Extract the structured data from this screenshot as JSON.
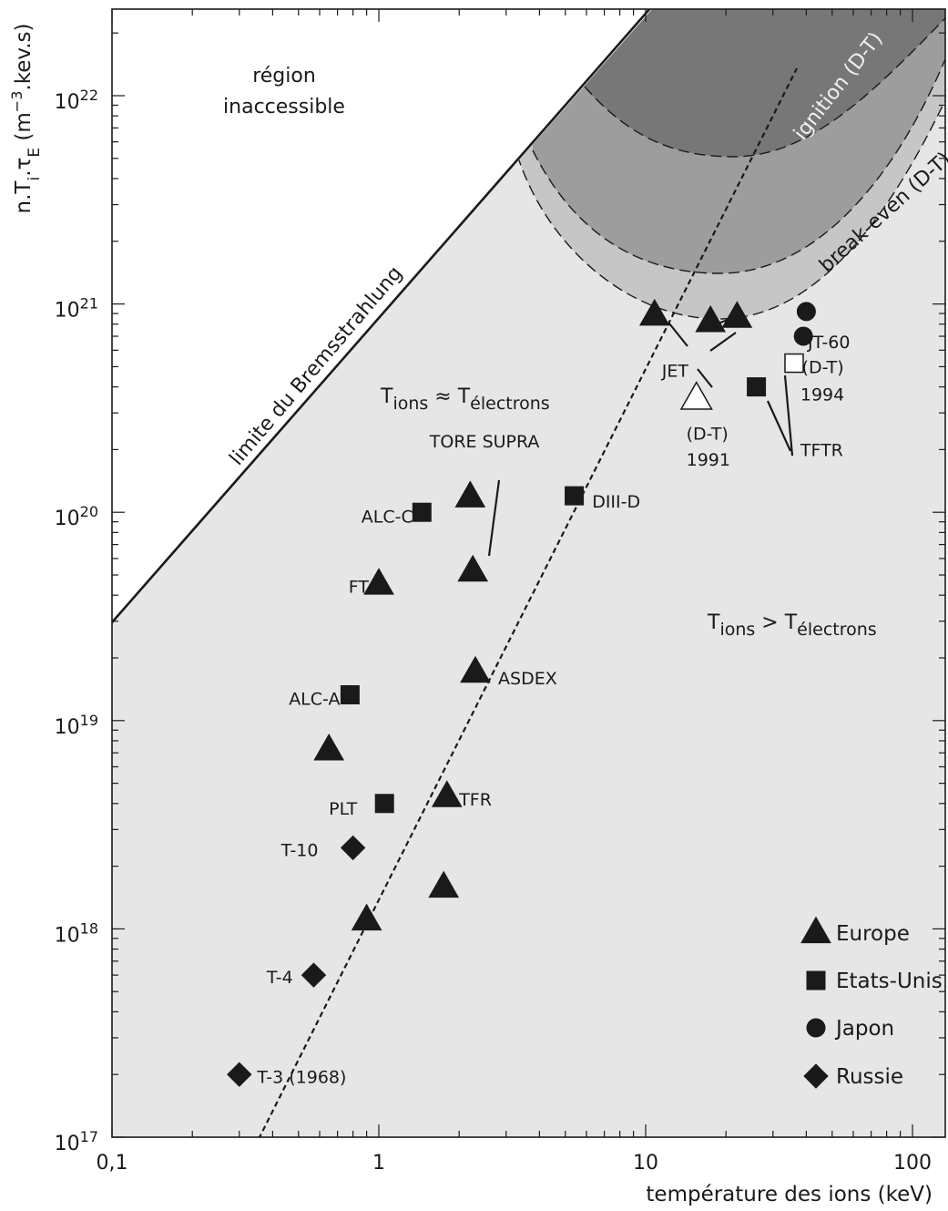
{
  "chart_data": {
    "type": "scatter",
    "xscale": "log",
    "yscale": "log",
    "xlim": [
      0.1,
      130
    ],
    "ylim": [
      1e+17,
      2.5e+22
    ],
    "xlabel": "température des ions (keV)",
    "ylabel": {
      "prefix": "n.T",
      "sub1": "i",
      "mid": ".τ",
      "sub2": "E",
      "units_a": " (m",
      "sup": "−3",
      "units_b": ".kev.s)"
    },
    "x_ticks": [
      {
        "value": 0.1,
        "label": "0,1"
      },
      {
        "value": 1,
        "label": "1"
      },
      {
        "value": 10,
        "label": "10"
      },
      {
        "value": 100,
        "label": "100"
      }
    ],
    "y_ticks": [
      {
        "value": 1e+17,
        "base": "10",
        "exp": "17"
      },
      {
        "value": 1e+18,
        "base": "10",
        "exp": "18"
      },
      {
        "value": 1e+19,
        "base": "10",
        "exp": "19"
      },
      {
        "value": 1e+20,
        "base": "10",
        "exp": "20"
      },
      {
        "value": 1e+21,
        "base": "10",
        "exp": "21"
      },
      {
        "value": 1e+22,
        "base": "10",
        "exp": "22"
      }
    ],
    "regions": {
      "inaccessible": [
        "région",
        "inaccessible"
      ],
      "bremsstrahlung_label": "limite du Bremsstrahlung",
      "ignition_label": "ignition (D-T)",
      "breakeven_label": "break-even (D-T)",
      "equal_temp": {
        "a": "T",
        "a_sub": "ions",
        "op": " ≈ T",
        "b_sub": "électrons"
      },
      "greater_temp": {
        "a": "T",
        "a_sub": "ions",
        "op": " > T",
        "b_sub": "électrons"
      }
    },
    "series": [
      {
        "name": "Europe",
        "marker": "triangle",
        "points": [
          {
            "x": 10.8,
            "y": 8.8e+20
          },
          {
            "x": 17.5,
            "y": 8.2e+20
          },
          {
            "x": 22,
            "y": 8.6e+20
          },
          {
            "x": 2.2,
            "y": 1.18e+20
          },
          {
            "x": 2.25,
            "y": 5.2e+19
          },
          {
            "x": 1.0,
            "y": 4.5e+19
          },
          {
            "x": 2.3,
            "y": 1.7e+19
          },
          {
            "x": 0.65,
            "y": 7.2e+18
          },
          {
            "x": 1.8,
            "y": 4.3e+18
          },
          {
            "x": 1.75,
            "y": 1.58e+18
          },
          {
            "x": 0.9,
            "y": 1.1e+18
          }
        ]
      },
      {
        "name": "Etats-Unis",
        "marker": "square",
        "points": [
          {
            "x": 1.45,
            "y": 1e+20
          },
          {
            "x": 5.4,
            "y": 1.2e+20
          },
          {
            "x": 0.78,
            "y": 1.33e+19
          },
          {
            "x": 1.05,
            "y": 4e+18
          },
          {
            "x": 26,
            "y": 4e+20
          }
        ]
      },
      {
        "name": "Japon",
        "marker": "circle",
        "points": [
          {
            "x": 40,
            "y": 9.2e+20
          },
          {
            "x": 39,
            "y": 7e+20
          }
        ]
      },
      {
        "name": "Russie",
        "marker": "diamond",
        "points": [
          {
            "x": 0.8,
            "y": 2.45e+18
          },
          {
            "x": 0.57,
            "y": 6e+17
          },
          {
            "x": 0.3,
            "y": 2e+17
          }
        ]
      }
    ],
    "open_markers": [
      {
        "marker": "triangle",
        "x": 15.5,
        "y": 3.5e+20
      },
      {
        "marker": "square",
        "x": 36,
        "y": 5.2e+20
      }
    ],
    "labels": [
      {
        "text": "JET",
        "x": 11.5,
        "y": 4.8e+20
      },
      {
        "text": "(D-T)",
        "x": 14.2,
        "y": 2.4e+20
      },
      {
        "text": "1991",
        "x": 14.2,
        "y": 1.8e+20
      },
      {
        "text": "JT-60",
        "x": 40.5,
        "y": 6.6e+20
      },
      {
        "text": "(D-T)",
        "x": 38.5,
        "y": 5e+20
      },
      {
        "text": "1994",
        "x": 38,
        "y": 3.7e+20
      },
      {
        "text": "TFTR",
        "x": 38,
        "y": 2e+20
      },
      {
        "text": "TORE SUPRA",
        "x": 1.55,
        "y": 2.2e+20
      },
      {
        "text": "DIII-D",
        "x": 6.3,
        "y": 1.13e+20
      },
      {
        "text": "ALC-C",
        "x": 0.86,
        "y": 9.6e+19
      },
      {
        "text": "FT",
        "x": 0.77,
        "y": 4.4e+19
      },
      {
        "text": "ASDEX",
        "x": 2.8,
        "y": 1.6e+19
      },
      {
        "text": "ALC-A",
        "x": 0.46,
        "y": 1.28e+19
      },
      {
        "text": "PLT",
        "x": 0.65,
        "y": 3.8e+18
      },
      {
        "text": "TFR",
        "x": 2.0,
        "y": 4.2e+18
      },
      {
        "text": "T-10",
        "x": 0.43,
        "y": 2.4e+18
      },
      {
        "text": "T-4",
        "x": 0.38,
        "y": 5.9e+17
      },
      {
        "text": "T-3 (1968)",
        "x": 0.35,
        "y": 1.95e+17
      }
    ],
    "legend": {
      "position": "bottom-right",
      "items": [
        "Europe",
        "Etats-Unis",
        "Japon",
        "Russie"
      ]
    },
    "colors": {
      "background_shade": "#e6e6e6",
      "breakeven_fill": "#c6c6c6",
      "middle_fill": "#9d9d9d",
      "ignition_fill": "#777777",
      "ink": "#1a1a1a",
      "white": "#ffffff"
    }
  }
}
